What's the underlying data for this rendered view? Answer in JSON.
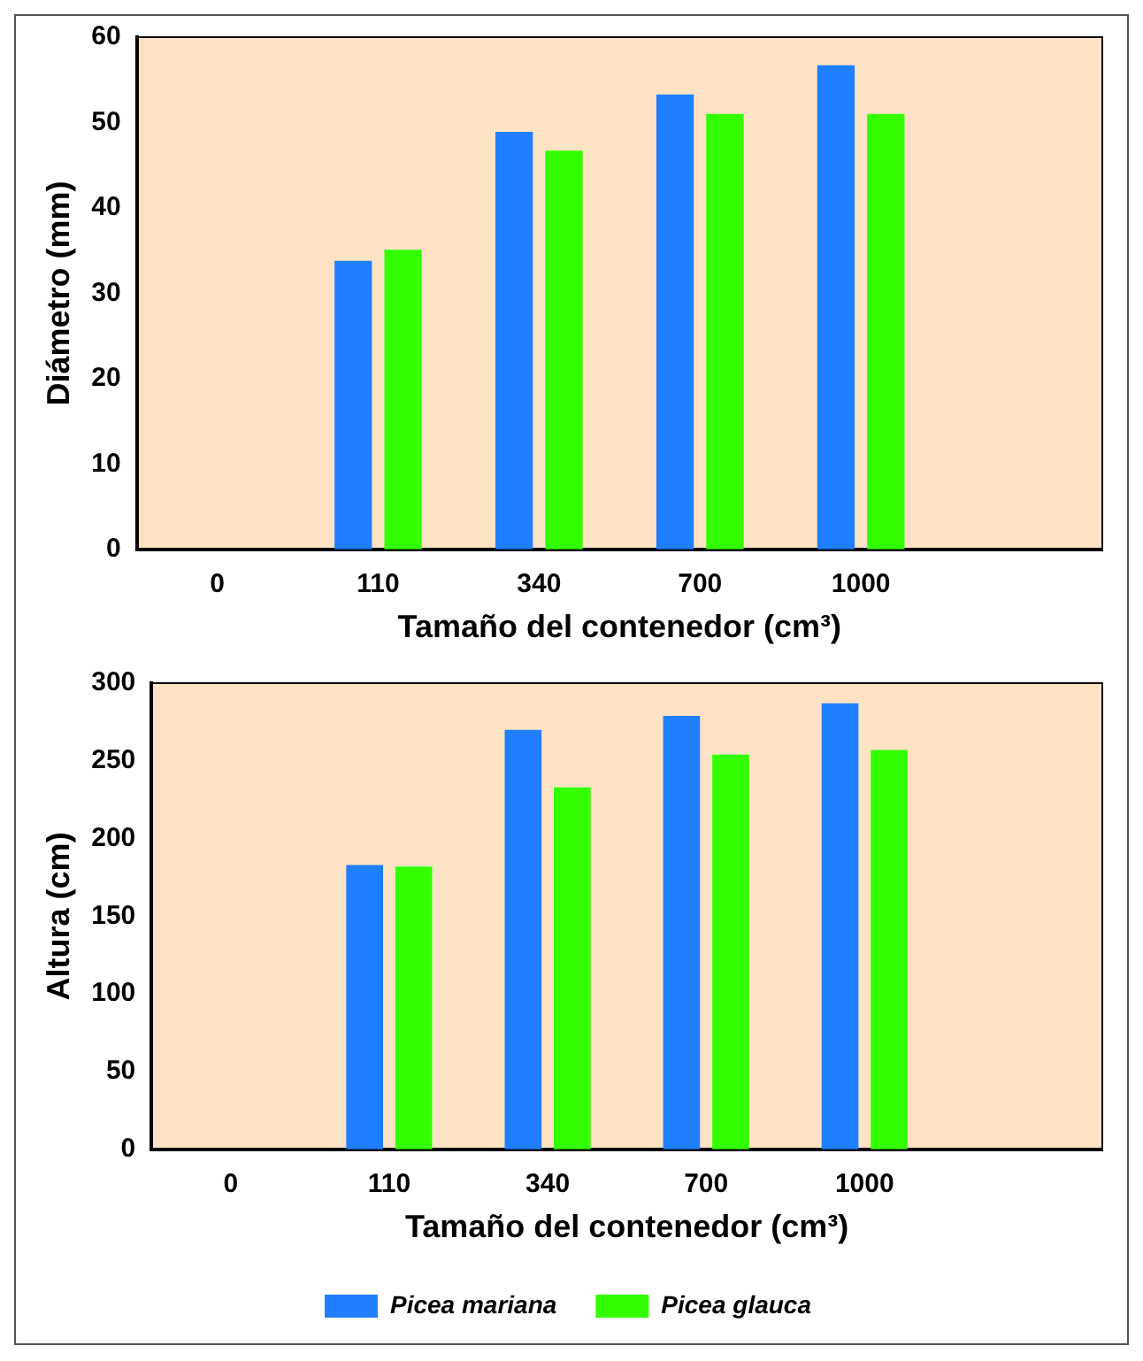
{
  "chart_data": [
    {
      "type": "bar",
      "xlabel": "Tamaño del contenedor (cm³)",
      "ylabel": "Diámetro (mm)",
      "categories": [
        "0",
        "110",
        "340",
        "700",
        "1000",
        null
      ],
      "ylim": [
        0,
        60
      ],
      "yticks": [
        0,
        10,
        20,
        30,
        40,
        50,
        60
      ],
      "grid": false,
      "legend": false,
      "series": [
        {
          "color": "#1f7fff",
          "values": [
            null,
            33.8,
            48.9,
            53.3,
            56.7,
            null
          ]
        },
        {
          "color": "#33ff00",
          "values": [
            null,
            35.1,
            46.7,
            51.0,
            51.0,
            null
          ]
        }
      ]
    },
    {
      "type": "bar",
      "xlabel": "Tamaño del contenedor (cm³)",
      "ylabel": "Altura (cm)",
      "categories": [
        "0",
        "110",
        "340",
        "700",
        "1000",
        null
      ],
      "ylim": [
        0,
        300
      ],
      "yticks": [
        0,
        50,
        100,
        150,
        200,
        250,
        300
      ],
      "grid": false,
      "legend": "bottom",
      "series": [
        {
          "name": "Picea mariana",
          "color": "#1f7fff",
          "values": [
            null,
            183,
            270,
            279,
            287,
            null
          ]
        },
        {
          "name": "Picea glauca",
          "color": "#33ff00",
          "values": [
            null,
            182,
            233,
            254,
            257,
            null
          ]
        }
      ]
    }
  ]
}
